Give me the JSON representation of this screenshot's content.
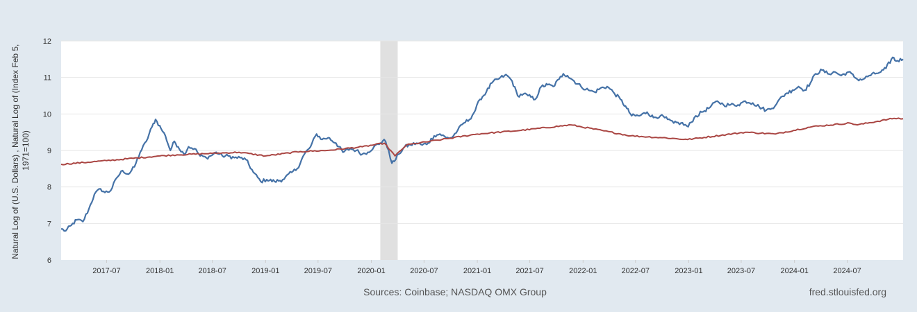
{
  "chart_data": {
    "type": "line",
    "title": "",
    "ylabel": [
      "Natural Log of (U.S. Dollars) , Natural Log of (Index Feb 5,",
      "1971=100)"
    ],
    "xlabel": "",
    "ylim": [
      6,
      12
    ],
    "xlim": [
      "2017-01-25",
      "2025-01-10"
    ],
    "grid": true,
    "y_ticks": [
      6,
      7,
      8,
      9,
      10,
      11,
      12
    ],
    "y_tick_labels": [
      "6",
      "7",
      "8",
      "9",
      "10",
      "11",
      "12"
    ],
    "x_ticks": [
      "2017-07",
      "2018-01",
      "2018-07",
      "2019-01",
      "2019-07",
      "2020-01",
      "2020-07",
      "2021-01",
      "2021-07",
      "2022-01",
      "2022-07",
      "2023-01",
      "2023-07",
      "2024-01",
      "2024-07"
    ],
    "recession_shade": {
      "start": "2020-02",
      "end": "2020-04"
    },
    "series": [
      {
        "color": "#4572a7",
        "x": [
          "2017-01-25",
          "2017-02-10",
          "2017-03-01",
          "2017-03-20",
          "2017-04-10",
          "2017-05-01",
          "2017-05-20",
          "2017-06-10",
          "2017-06-25",
          "2017-07-15",
          "2017-08-05",
          "2017-08-25",
          "2017-09-15",
          "2017-10-05",
          "2017-10-25",
          "2017-11-15",
          "2017-12-05",
          "2017-12-17",
          "2018-01-05",
          "2018-01-20",
          "2018-02-06",
          "2018-02-20",
          "2018-03-05",
          "2018-03-25",
          "2018-04-10",
          "2018-05-01",
          "2018-05-20",
          "2018-06-10",
          "2018-06-25",
          "2018-07-15",
          "2018-08-05",
          "2018-08-25",
          "2018-09-15",
          "2018-10-05",
          "2018-10-25",
          "2018-11-20",
          "2018-12-15",
          "2019-01-05",
          "2019-02-01",
          "2019-03-01",
          "2019-04-01",
          "2019-04-20",
          "2019-05-15",
          "2019-06-05",
          "2019-06-26",
          "2019-07-15",
          "2019-08-05",
          "2019-09-01",
          "2019-09-25",
          "2019-10-20",
          "2019-11-10",
          "2019-12-01",
          "2019-12-20",
          "2020-01-10",
          "2020-02-01",
          "2020-02-14",
          "2020-03-01",
          "2020-03-12",
          "2020-03-20",
          "2020-04-05",
          "2020-04-25",
          "2020-05-15",
          "2020-06-05",
          "2020-06-25",
          "2020-07-15",
          "2020-08-05",
          "2020-08-25",
          "2020-09-15",
          "2020-10-05",
          "2020-10-25",
          "2020-11-15",
          "2020-12-05",
          "2020-12-25",
          "2021-01-10",
          "2021-02-01",
          "2021-02-20",
          "2021-03-13",
          "2021-04-05",
          "2021-04-14",
          "2021-05-01",
          "2021-05-20",
          "2021-06-10",
          "2021-06-25",
          "2021-07-20",
          "2021-08-10",
          "2021-09-01",
          "2021-09-20",
          "2021-10-10",
          "2021-10-25",
          "2021-11-08",
          "2021-12-01",
          "2021-12-25",
          "2022-01-20",
          "2022-02-10",
          "2022-03-01",
          "2022-03-25",
          "2022-04-15",
          "2022-05-10",
          "2022-06-01",
          "2022-06-18",
          "2022-07-15",
          "2022-08-10",
          "2022-09-01",
          "2022-09-25",
          "2022-10-20",
          "2022-11-10",
          "2022-12-05",
          "2022-12-30",
          "2023-01-20",
          "2023-02-15",
          "2023-03-10",
          "2023-04-10",
          "2023-05-01",
          "2023-05-25",
          "2023-06-20",
          "2023-07-15",
          "2023-08-10",
          "2023-09-01",
          "2023-09-25",
          "2023-10-15",
          "2023-11-05",
          "2023-12-01",
          "2023-12-25",
          "2024-01-15",
          "2024-02-05",
          "2024-02-25",
          "2024-03-14",
          "2024-04-05",
          "2024-04-25",
          "2024-05-20",
          "2024-06-10",
          "2024-07-05",
          "2024-08-05",
          "2024-08-25",
          "2024-09-15",
          "2024-10-05",
          "2024-10-25",
          "2024-11-12",
          "2024-12-05",
          "2024-12-17",
          "2025-01-10"
        ],
        "values": [
          6.85,
          6.8,
          6.95,
          7.1,
          7.05,
          7.4,
          7.8,
          7.95,
          7.85,
          7.9,
          8.25,
          8.45,
          8.35,
          8.55,
          8.95,
          9.25,
          9.65,
          9.85,
          9.6,
          9.4,
          9.0,
          9.25,
          9.1,
          8.9,
          9.1,
          9.05,
          8.85,
          8.8,
          8.85,
          8.95,
          8.85,
          8.85,
          8.8,
          8.8,
          8.75,
          8.4,
          8.15,
          8.2,
          8.15,
          8.2,
          8.4,
          8.5,
          8.9,
          9.1,
          9.45,
          9.3,
          9.35,
          9.2,
          8.95,
          9.05,
          9.0,
          8.9,
          8.95,
          9.1,
          9.2,
          9.3,
          9.0,
          8.65,
          8.7,
          8.9,
          9.1,
          9.15,
          9.2,
          9.15,
          9.2,
          9.4,
          9.45,
          9.35,
          9.35,
          9.55,
          9.75,
          9.85,
          10.1,
          10.4,
          10.6,
          10.85,
          10.95,
          11.05,
          11.05,
          10.9,
          10.5,
          10.55,
          10.5,
          10.4,
          10.75,
          10.8,
          10.75,
          10.95,
          11.1,
          11.05,
          10.9,
          10.75,
          10.65,
          10.6,
          10.7,
          10.75,
          10.6,
          10.4,
          10.15,
          9.95,
          9.95,
          10.05,
          9.9,
          9.95,
          9.85,
          9.75,
          9.75,
          9.65,
          9.9,
          10.05,
          10.15,
          10.35,
          10.25,
          10.25,
          10.25,
          10.35,
          10.3,
          10.2,
          10.1,
          10.15,
          10.35,
          10.55,
          10.65,
          10.75,
          10.65,
          10.85,
          11.1,
          11.2,
          11.1,
          11.15,
          11.05,
          11.15,
          10.95,
          10.95,
          11.05,
          11.1,
          11.15,
          11.25,
          11.55,
          11.45,
          11.5
        ]
      },
      {
        "color": "#aa4643",
        "x": [
          "2017-01-25",
          "2017-07-01",
          "2018-01-01",
          "2018-03-01",
          "2018-07-01",
          "2018-10-01",
          "2019-01-01",
          "2019-05-01",
          "2019-08-01",
          "2019-12-01",
          "2020-02-15",
          "2020-03-23",
          "2020-05-01",
          "2020-09-01",
          "2021-01-01",
          "2021-06-01",
          "2021-11-20",
          "2022-06-15",
          "2022-10-01",
          "2022-12-28",
          "2023-07-15",
          "2023-10-27",
          "2024-03-01",
          "2024-07-10",
          "2024-08-05",
          "2024-12-10",
          "2025-01-10"
        ],
        "values": [
          8.62,
          8.72,
          8.85,
          8.88,
          8.92,
          8.95,
          8.85,
          8.97,
          9.0,
          9.1,
          9.2,
          8.85,
          9.15,
          9.3,
          9.45,
          9.55,
          9.7,
          9.4,
          9.35,
          9.3,
          9.5,
          9.45,
          9.65,
          9.75,
          9.7,
          9.88,
          9.87
        ]
      }
    ]
  },
  "footer": {
    "sources": "Sources: Coinbase; NASDAQ OMX Group",
    "site": "fred.stlouisfed.org"
  }
}
